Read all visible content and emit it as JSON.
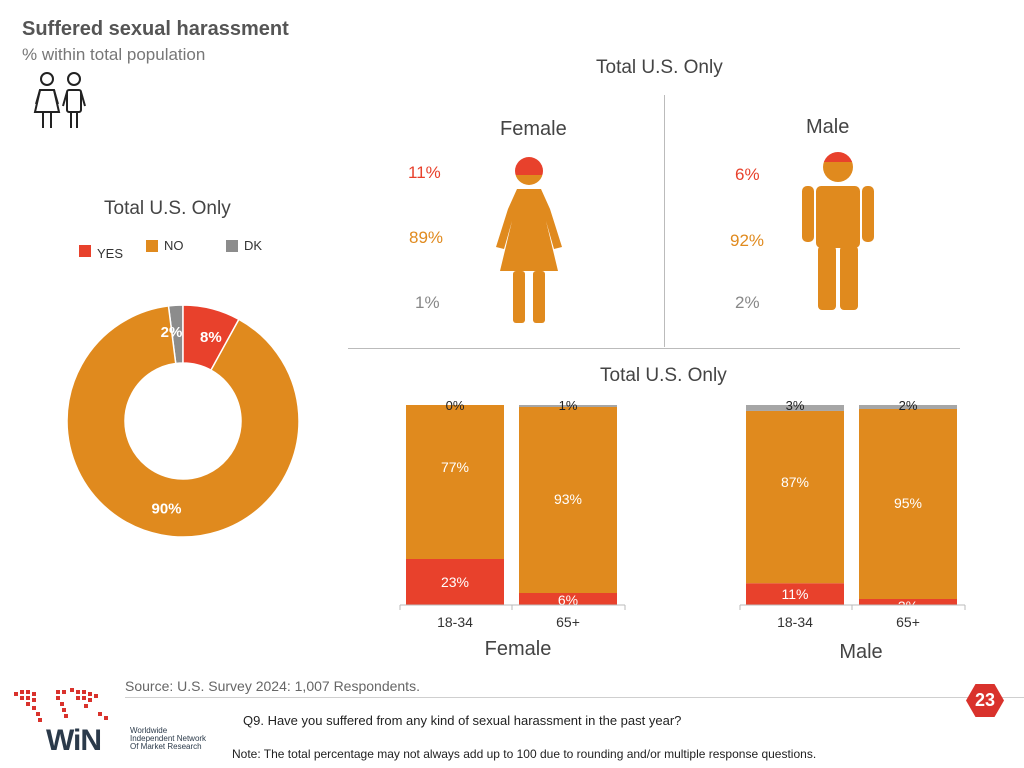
{
  "header": {
    "title": "Suffered sexual harassment",
    "subtitle": "% within total population"
  },
  "colors": {
    "yes": "#e8412c",
    "no": "#e08a1e",
    "dk": "#8c8c8c"
  },
  "people_section": {
    "title": "Total U.S. Only",
    "female": {
      "label": "Female",
      "yes": "11%",
      "no": "89%",
      "dk": "1%"
    },
    "male": {
      "label": "Male",
      "yes": "6%",
      "no": "92%",
      "dk": "2%"
    }
  },
  "donut_title": "Total U.S. Only",
  "legend": {
    "yes": "YES",
    "no": "NO",
    "dk": "DK"
  },
  "bars_title": "Total U.S. Only",
  "chart_data": [
    {
      "type": "pie",
      "title": "Total U.S. Only",
      "categories": [
        "YES",
        "NO",
        "DK"
      ],
      "values": [
        8,
        90,
        2
      ],
      "labels": [
        "8%",
        "90%",
        "2%"
      ]
    },
    {
      "type": "bar",
      "stacked": true,
      "title": "Total U.S. Only",
      "groups": [
        "Female",
        "Female",
        "Male",
        "Male"
      ],
      "categories": [
        "18-34",
        "65+",
        "18-34",
        "65+"
      ],
      "series": [
        {
          "name": "YES",
          "values": [
            23,
            6,
            11,
            3
          ],
          "labels": [
            "23%",
            "6%",
            "11%",
            "3%"
          ]
        },
        {
          "name": "NO",
          "values": [
            77,
            93,
            87,
            95
          ],
          "labels": [
            "77%",
            "93%",
            "87%",
            "95%"
          ]
        },
        {
          "name": "DK",
          "values": [
            0,
            1,
            3,
            2
          ],
          "labels": [
            "0%",
            "1%",
            "3%",
            "2%"
          ]
        }
      ],
      "group_labels": [
        "Female",
        "Male"
      ],
      "ylim": [
        0,
        100
      ]
    }
  ],
  "footer": {
    "source": "Source: U.S. Survey 2024: 1,007 Respondents.",
    "question": "Q9. Have you suffered from any kind of sexual harassment in the past year?",
    "note": "Note: The total percentage may not always add up to 100 due to rounding and/or multiple response questions.",
    "page_number": "23",
    "logo_text": "WiN",
    "logo_sub_1": "Worldwide",
    "logo_sub_2": "Independent Network",
    "logo_sub_3": "Of Market Research"
  }
}
